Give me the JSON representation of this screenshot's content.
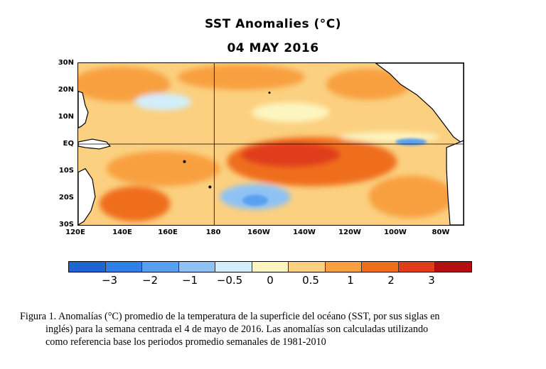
{
  "title": "SST Anomalies (°C)",
  "date": "04 MAY 2016",
  "map": {
    "lat_labels": [
      "30N",
      "20N",
      "10N",
      "EQ",
      "10S",
      "20S",
      "30S"
    ],
    "lon_labels": [
      "120E",
      "140E",
      "160E",
      "180",
      "160W",
      "140W",
      "120W",
      "100W",
      "80W"
    ],
    "lon_range": [
      "120E",
      "70W"
    ],
    "lat_range": [
      "30S",
      "30N"
    ],
    "land_color": "#ffffff",
    "coastline_color": "#000000"
  },
  "colorbar": {
    "colors": [
      "#1e64d2",
      "#2f7fe8",
      "#5aa0f0",
      "#8ec2f5",
      "#d2eefc",
      "#fdf5c0",
      "#fbd080",
      "#f8a040",
      "#ef6e1c",
      "#e03c1a",
      "#b40f0f"
    ],
    "tick_labels": [
      "−3",
      "−2",
      "−1",
      "−0.5",
      "0",
      "0.5",
      "1",
      "2",
      "3"
    ]
  },
  "caption": {
    "line1": "Figura 1. Anomalías (°C) promedio de la temperatura de la superficie del océano (SST, por sus siglas en",
    "line2": "inglés) para la semana centrada el 4 de mayo de 2016. Las anomalías son calculadas utilizando",
    "line3": "como referencia base los periodos promedio semanales de 1981-2010"
  }
}
